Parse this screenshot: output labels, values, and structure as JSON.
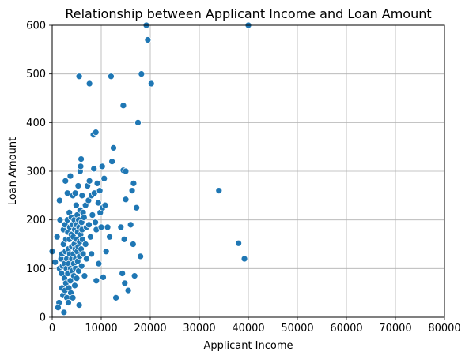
{
  "chart_data": {
    "type": "scatter",
    "title": "Relationship between Applicant Income and Loan Amount",
    "xlabel": "Applicant Income",
    "ylabel": "Loan Amount",
    "xlim": [
      0,
      80000
    ],
    "ylim": [
      0,
      600
    ],
    "xticks": [
      0,
      10000,
      20000,
      30000,
      40000,
      50000,
      60000,
      70000,
      80000
    ],
    "yticks": [
      0,
      100,
      200,
      300,
      400,
      500,
      600
    ],
    "grid": true,
    "marker_color": "#1f77b4",
    "marker_edge_color": "#ffffff",
    "points": [
      [
        0,
        135
      ],
      [
        600,
        113
      ],
      [
        1000,
        165
      ],
      [
        1500,
        240
      ],
      [
        1600,
        200
      ],
      [
        1500,
        100
      ],
      [
        1400,
        30
      ],
      [
        1200,
        20
      ],
      [
        1800,
        120
      ],
      [
        1900,
        90
      ],
      [
        2000,
        130
      ],
      [
        2000,
        60
      ],
      [
        2100,
        105
      ],
      [
        2200,
        45
      ],
      [
        2300,
        150
      ],
      [
        2300,
        180
      ],
      [
        2400,
        10
      ],
      [
        2500,
        80
      ],
      [
        2500,
        110
      ],
      [
        2600,
        190
      ],
      [
        2600,
        55
      ],
      [
        2700,
        280
      ],
      [
        2700,
        135
      ],
      [
        2800,
        70
      ],
      [
        2800,
        160
      ],
      [
        2900,
        100
      ],
      [
        3000,
        120
      ],
      [
        3000,
        40
      ],
      [
        3100,
        200
      ],
      [
        3100,
        255
      ],
      [
        3200,
        90
      ],
      [
        3200,
        175
      ],
      [
        3300,
        30
      ],
      [
        3300,
        140
      ],
      [
        3400,
        110
      ],
      [
        3400,
        60
      ],
      [
        3500,
        215
      ],
      [
        3500,
        160
      ],
      [
        3600,
        185
      ],
      [
        3600,
        130
      ],
      [
        3700,
        290
      ],
      [
        3700,
        75
      ],
      [
        3800,
        50
      ],
      [
        3800,
        100
      ],
      [
        3900,
        205
      ],
      [
        3900,
        170
      ],
      [
        4000,
        145
      ],
      [
        4000,
        120
      ],
      [
        4100,
        95
      ],
      [
        4100,
        190
      ],
      [
        4200,
        40
      ],
      [
        4200,
        250
      ],
      [
        4300,
        165
      ],
      [
        4300,
        130
      ],
      [
        4400,
        110
      ],
      [
        4400,
        85
      ],
      [
        4500,
        200
      ],
      [
        4500,
        150
      ],
      [
        4600,
        65
      ],
      [
        4600,
        180
      ],
      [
        4700,
        255
      ],
      [
        4700,
        140
      ],
      [
        4800,
        120
      ],
      [
        4800,
        100
      ],
      [
        4900,
        230
      ],
      [
        4900,
        190
      ],
      [
        5000,
        160
      ],
      [
        5000,
        80
      ],
      [
        5100,
        135
      ],
      [
        5100,
        210
      ],
      [
        5200,
        175
      ],
      [
        5200,
        115
      ],
      [
        5300,
        270
      ],
      [
        5300,
        145
      ],
      [
        5400,
        95
      ],
      [
        5400,
        200
      ],
      [
        5500,
        495
      ],
      [
        5500,
        185
      ],
      [
        5500,
        25
      ],
      [
        5600,
        155
      ],
      [
        5600,
        125
      ],
      [
        5700,
        300
      ],
      [
        5700,
        220
      ],
      [
        5800,
        310
      ],
      [
        5800,
        170
      ],
      [
        5900,
        325
      ],
      [
        5900,
        140
      ],
      [
        6000,
        195
      ],
      [
        6000,
        105
      ],
      [
        6100,
        250
      ],
      [
        6100,
        180
      ],
      [
        6200,
        160
      ],
      [
        6300,
        215
      ],
      [
        6300,
        130
      ],
      [
        6500,
        205
      ],
      [
        6600,
        85
      ],
      [
        6800,
        230
      ],
      [
        6800,
        150
      ],
      [
        7000,
        185
      ],
      [
        7000,
        120
      ],
      [
        7200,
        270
      ],
      [
        7400,
        240
      ],
      [
        7500,
        190
      ],
      [
        7600,
        280
      ],
      [
        7600,
        480
      ],
      [
        7800,
        165
      ],
      [
        8000,
        250
      ],
      [
        8000,
        130
      ],
      [
        8200,
        210
      ],
      [
        8400,
        375
      ],
      [
        8500,
        305
      ],
      [
        8600,
        255
      ],
      [
        8800,
        195
      ],
      [
        8900,
        380
      ],
      [
        9000,
        75
      ],
      [
        9000,
        180
      ],
      [
        9200,
        275
      ],
      [
        9400,
        235
      ],
      [
        9500,
        110
      ],
      [
        9700,
        260
      ],
      [
        9800,
        215
      ],
      [
        10000,
        185
      ],
      [
        10200,
        310
      ],
      [
        10300,
        225
      ],
      [
        10400,
        82
      ],
      [
        10600,
        285
      ],
      [
        10800,
        230
      ],
      [
        11000,
        135
      ],
      [
        11300,
        185
      ],
      [
        11700,
        165
      ],
      [
        12000,
        495
      ],
      [
        12200,
        320
      ],
      [
        12500,
        348
      ],
      [
        13000,
        40
      ],
      [
        14000,
        185
      ],
      [
        14300,
        90
      ],
      [
        14500,
        302
      ],
      [
        14500,
        435
      ],
      [
        14700,
        160
      ],
      [
        14800,
        70
      ],
      [
        15000,
        300
      ],
      [
        15000,
        242
      ],
      [
        15500,
        55
      ],
      [
        16000,
        190
      ],
      [
        16300,
        260
      ],
      [
        16500,
        150
      ],
      [
        16600,
        275
      ],
      [
        16800,
        85
      ],
      [
        17200,
        225
      ],
      [
        17500,
        400
      ],
      [
        18000,
        125
      ],
      [
        18200,
        500
      ],
      [
        19200,
        600
      ],
      [
        19500,
        570
      ],
      [
        20200,
        480
      ],
      [
        34000,
        260
      ],
      [
        38000,
        152
      ],
      [
        39200,
        120
      ],
      [
        40000,
        600
      ]
    ]
  }
}
